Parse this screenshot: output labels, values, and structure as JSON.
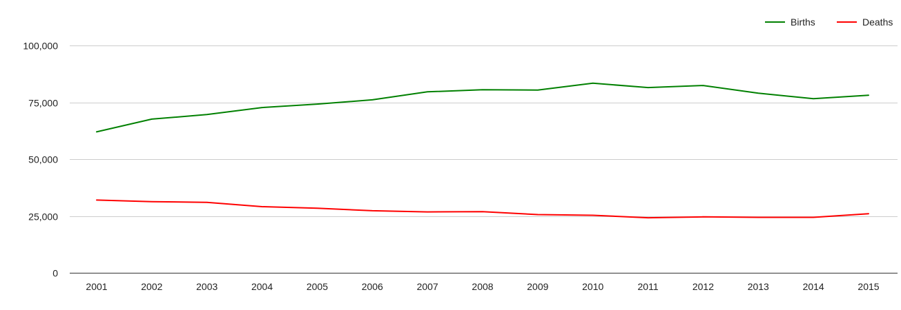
{
  "chart_data": {
    "type": "line",
    "title": "",
    "xlabel": "",
    "ylabel": "",
    "x": [
      "2001",
      "2002",
      "2003",
      "2004",
      "2005",
      "2006",
      "2007",
      "2008",
      "2009",
      "2010",
      "2011",
      "2012",
      "2013",
      "2014",
      "2015"
    ],
    "ylim": [
      0,
      110000
    ],
    "yticks": [
      0,
      25000,
      50000,
      75000,
      100000
    ],
    "ytick_labels": [
      "0",
      "25,000",
      "50,000",
      "75,000",
      "100,000"
    ],
    "grid": true,
    "legend_position": "top-right",
    "series": [
      {
        "name": "Births",
        "color": "#008000",
        "values": [
          62000,
          67600,
          69600,
          72700,
          74200,
          76100,
          79600,
          80500,
          80400,
          83400,
          81500,
          82400,
          79000,
          76600,
          78100
        ]
      },
      {
        "name": "Deaths",
        "color": "#ff0000",
        "values": [
          32000,
          31300,
          31000,
          29100,
          28400,
          27300,
          26800,
          26900,
          25600,
          25300,
          24200,
          24600,
          24400,
          24400,
          26000
        ]
      }
    ]
  }
}
